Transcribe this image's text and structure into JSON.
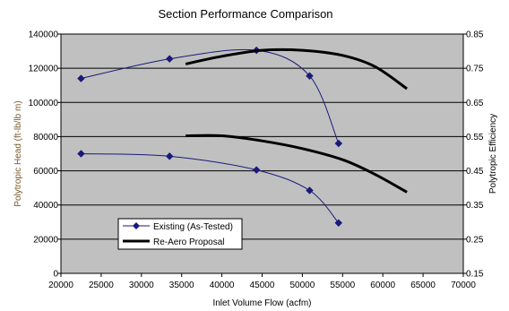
{
  "chart_data": {
    "type": "line",
    "title": "Section Performance Comparison",
    "xlabel": "Inlet Volume Flow (acfm)",
    "ylabel_left": "Polytropic Head (ft-lb/lb m)",
    "ylabel_right": "Polytropic Efficiency",
    "xlim": [
      20000,
      70000
    ],
    "ylim_left": [
      0,
      140000
    ],
    "ylim_right": [
      0.15,
      0.85
    ],
    "x_ticks": [
      "20000",
      "25000",
      "30000",
      "35000",
      "40000",
      "45000",
      "50000",
      "55000",
      "60000",
      "65000",
      "70000"
    ],
    "y_left_ticks": [
      "0",
      "20000",
      "40000",
      "60000",
      "80000",
      "100000",
      "120000",
      "140000"
    ],
    "y_right_ticks": [
      "0.15",
      "0.25",
      "0.35",
      "0.45",
      "0.55",
      "0.65",
      "0.75",
      "0.85"
    ],
    "grid": true,
    "legend_position": "bottom-left",
    "legend": [
      "Existing (As-Tested)",
      "Re-Aero Proposal"
    ],
    "colors": {
      "plot_background": "#c0c0c0",
      "grid": "#000000",
      "existing": "#1a1a7a",
      "reaero": "#000000",
      "left_label": "#7a5a2a"
    },
    "series": [
      {
        "name": "Existing (As-Tested)",
        "axis": "left",
        "marker": "diamond",
        "points": [
          [
            22500,
            114000
          ],
          [
            33500,
            125500
          ],
          [
            44300,
            130500
          ],
          [
            50900,
            115500
          ],
          [
            54500,
            76000
          ]
        ]
      },
      {
        "name": "Existing (As-Tested)",
        "axis": "left",
        "marker": "diamond",
        "points": [
          [
            22500,
            70000
          ],
          [
            33500,
            68500
          ],
          [
            44300,
            60500
          ],
          [
            50900,
            48500
          ],
          [
            54500,
            29500
          ]
        ]
      },
      {
        "name": "Re-Aero Proposal",
        "axis": "left",
        "marker": "none",
        "points": [
          [
            35500,
            122500
          ],
          [
            40000,
            127000
          ],
          [
            45000,
            130500
          ],
          [
            50000,
            130500
          ],
          [
            55000,
            127500
          ],
          [
            59000,
            121000
          ],
          [
            63000,
            108000
          ]
        ]
      },
      {
        "name": "Re-Aero Proposal",
        "axis": "left",
        "marker": "none",
        "points": [
          [
            35500,
            80500
          ],
          [
            40000,
            80500
          ],
          [
            45000,
            77500
          ],
          [
            50000,
            73000
          ],
          [
            55000,
            66500
          ],
          [
            59000,
            58000
          ],
          [
            63000,
            47500
          ]
        ]
      }
    ]
  }
}
